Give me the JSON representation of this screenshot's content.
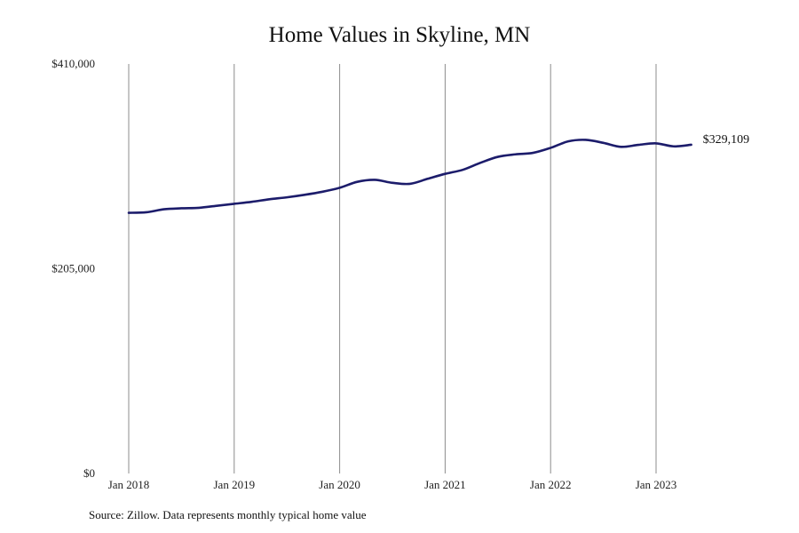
{
  "chart_data": {
    "type": "line",
    "title": "Home Values in Skyline, MN",
    "xlabel": "",
    "ylabel": "",
    "source_note": "Source: Zillow. Data represents monthly typical home value",
    "ylim": [
      0,
      410000
    ],
    "y_ticks": [
      {
        "value": 0,
        "label": "$0"
      },
      {
        "value": 205000,
        "label": "$205,000"
      },
      {
        "value": 410000,
        "label": "$410,000"
      }
    ],
    "xlim": [
      "2018-01",
      "2023-05"
    ],
    "x_ticks": [
      {
        "date": "2018-01",
        "label": "Jan 2018"
      },
      {
        "date": "2019-01",
        "label": "Jan 2019"
      },
      {
        "date": "2020-01",
        "label": "Jan 2020"
      },
      {
        "date": "2021-01",
        "label": "Jan 2021"
      },
      {
        "date": "2022-01",
        "label": "Jan 2022"
      },
      {
        "date": "2023-01",
        "label": "Jan 2023"
      }
    ],
    "grid": {
      "vertical": true,
      "horizontal": false
    },
    "colors": {
      "line": "#1c1c6b"
    },
    "end_label": "$329,109",
    "series": [
      {
        "x": [
          "2018-01",
          "2018-03",
          "2018-05",
          "2018-07",
          "2018-09",
          "2018-11",
          "2019-01",
          "2019-03",
          "2019-05",
          "2019-07",
          "2019-09",
          "2019-11",
          "2020-01",
          "2020-03",
          "2020-05",
          "2020-07",
          "2020-09",
          "2020-11",
          "2021-01",
          "2021-03",
          "2021-05",
          "2021-07",
          "2021-09",
          "2021-11",
          "2022-01",
          "2022-03",
          "2022-05",
          "2022-07",
          "2022-09",
          "2022-11",
          "2023-01",
          "2023-03",
          "2023-05"
        ],
        "y": [
          261000,
          261500,
          264500,
          265500,
          266000,
          268000,
          270000,
          272000,
          274500,
          276500,
          279000,
          282000,
          286000,
          292000,
          294000,
          291000,
          290000,
          295000,
          300000,
          304000,
          311000,
          317000,
          319500,
          321000,
          326000,
          332500,
          334000,
          331000,
          327000,
          329000,
          330500,
          327500,
          329109
        ]
      }
    ]
  }
}
